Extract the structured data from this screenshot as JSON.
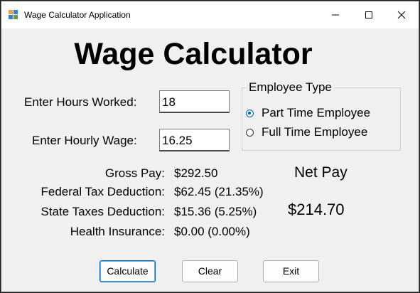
{
  "window": {
    "title": "Wage Calculator Application"
  },
  "heading": "Wage Calculator",
  "inputs": {
    "hours_label": "Enter Hours Worked:",
    "hours_value": "18",
    "wage_label": "Enter Hourly Wage:",
    "wage_value": "16.25"
  },
  "employee_type": {
    "title": "Employee Type",
    "options": [
      {
        "label": "Part Time Employee",
        "checked": true
      },
      {
        "label": "Full Time Employee",
        "checked": false
      }
    ]
  },
  "results": {
    "gross_label": "Gross Pay:",
    "gross_value": "$292.50",
    "federal_label": "Federal Tax Deduction:",
    "federal_value": "$62.45 (21.35%)",
    "state_label": "State Taxes Deduction:",
    "state_value": "$15.36 (5.25%)",
    "health_label": "Health Insurance:",
    "health_value": "$0.00 (0.00%)"
  },
  "net_pay": {
    "label": "Net Pay",
    "value": "$214.70"
  },
  "buttons": {
    "calculate": "Calculate",
    "clear": "Clear",
    "exit": "Exit"
  },
  "colors": {
    "accent": "#005fb8",
    "window_bg": "#f0f0f0",
    "titlebar_bg": "#ffffff"
  }
}
